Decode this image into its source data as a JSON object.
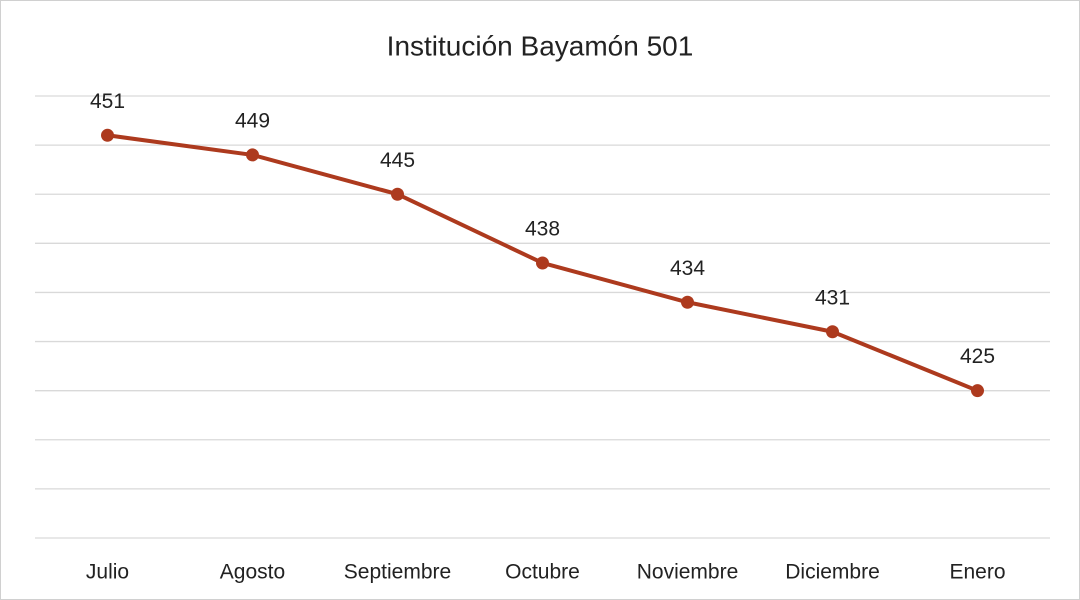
{
  "chart_data": {
    "type": "line",
    "title": "Institución Bayamón 501",
    "categories": [
      "Julio",
      "Agosto",
      "Septiembre",
      "Octubre",
      "Noviembre",
      "Diciembre",
      "Enero"
    ],
    "values": [
      451,
      449,
      445,
      438,
      434,
      431,
      425
    ],
    "color": "#ad3a1e",
    "ylim": [
      410,
      455
    ],
    "yticks": [
      410,
      415,
      420,
      425,
      430,
      435,
      440,
      445,
      450,
      455
    ],
    "grid": true
  }
}
